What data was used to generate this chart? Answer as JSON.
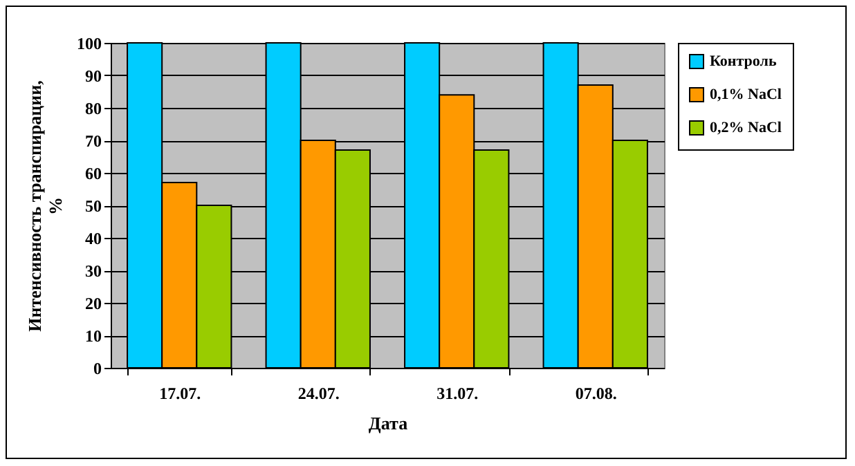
{
  "chart_data": {
    "type": "bar",
    "xlabel": "Дата",
    "ylabel": "Интенсивность транспирации,\n%",
    "categories": [
      "17.07.",
      "24.07.",
      "31.07.",
      "07.08."
    ],
    "series": [
      {
        "name": "Контроль",
        "color": "#00ccff",
        "values": [
          100,
          100,
          100,
          100
        ]
      },
      {
        "name": "0,1% NaCl",
        "color": "#ff9900",
        "values": [
          57,
          70,
          84,
          87
        ]
      },
      {
        "name": "0,2% NaCl",
        "color": "#99cc00",
        "values": [
          50,
          67,
          67,
          70
        ]
      }
    ],
    "ylim": [
      0,
      100
    ],
    "yticks": [
      0,
      10,
      20,
      30,
      40,
      50,
      60,
      70,
      80,
      90,
      100
    ],
    "grid": "y",
    "legend": "right"
  }
}
